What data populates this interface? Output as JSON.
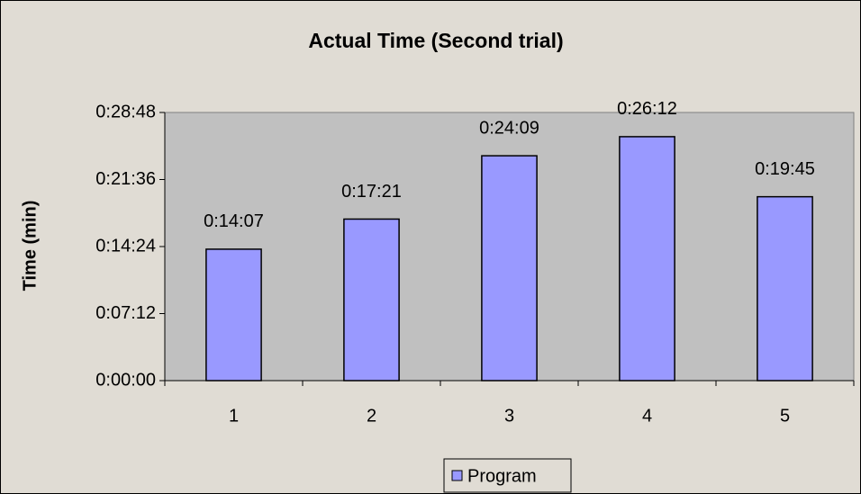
{
  "chart_data": {
    "type": "bar",
    "title": "Actual Time (Second trial)",
    "y_label": "Time (min)",
    "categories": [
      "1",
      "2",
      "3",
      "4",
      "5"
    ],
    "series": [
      {
        "name": "Program",
        "color": "#9999ff",
        "values": [
          847,
          1041,
          1449,
          1572,
          1185
        ],
        "value_labels": [
          "0:14:07",
          "0:17:21",
          "0:24:09",
          "0:26:12",
          "0:19:45"
        ]
      }
    ],
    "ylim": [
      0,
      1728
    ],
    "yticks": [
      {
        "value": 0,
        "label": "0:00:00"
      },
      {
        "value": 432,
        "label": "0:07:12"
      },
      {
        "value": 864,
        "label": "0:14:24"
      },
      {
        "value": 1296,
        "label": "0:21:36"
      },
      {
        "value": 1728,
        "label": "0:28:48"
      }
    ],
    "grid": false,
    "legend": "bottom"
  }
}
